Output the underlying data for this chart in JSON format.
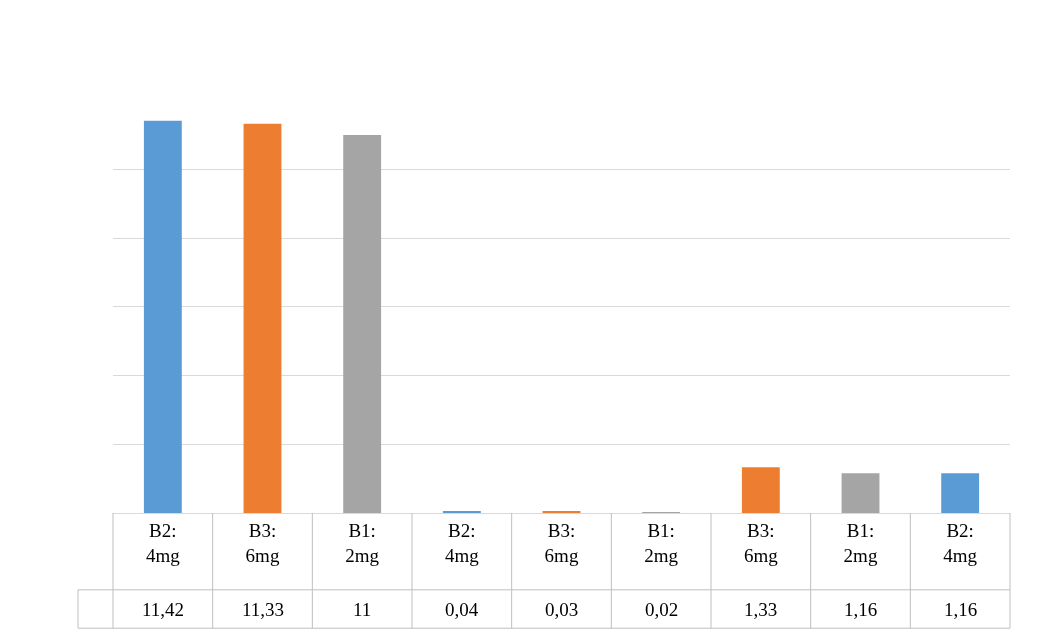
{
  "chart_data": {
    "type": "bar",
    "categories": [
      "B2: 4mg",
      "B3: 6mg",
      "B1: 2mg",
      "B2: 4mg",
      "B3: 6mg",
      "B1: 2mg",
      "B3: 6mg",
      "B1: 2mg",
      "B2: 4mg"
    ],
    "values": [
      11.42,
      11.33,
      11,
      0.04,
      0.03,
      0.02,
      1.33,
      1.16,
      1.16
    ],
    "value_labels": [
      "11,42",
      "11,33",
      "11",
      "0,04",
      "0,03",
      "0,02",
      "1,33",
      "1,16",
      "1,16"
    ],
    "colors": [
      "#5b9bd5",
      "#ed7d31",
      "#a5a5a5",
      "#5b9bd5",
      "#ed7d31",
      "#a5a5a5",
      "#ed7d31",
      "#a5a5a5",
      "#5b9bd5"
    ],
    "grid": "y",
    "legend": false
  }
}
